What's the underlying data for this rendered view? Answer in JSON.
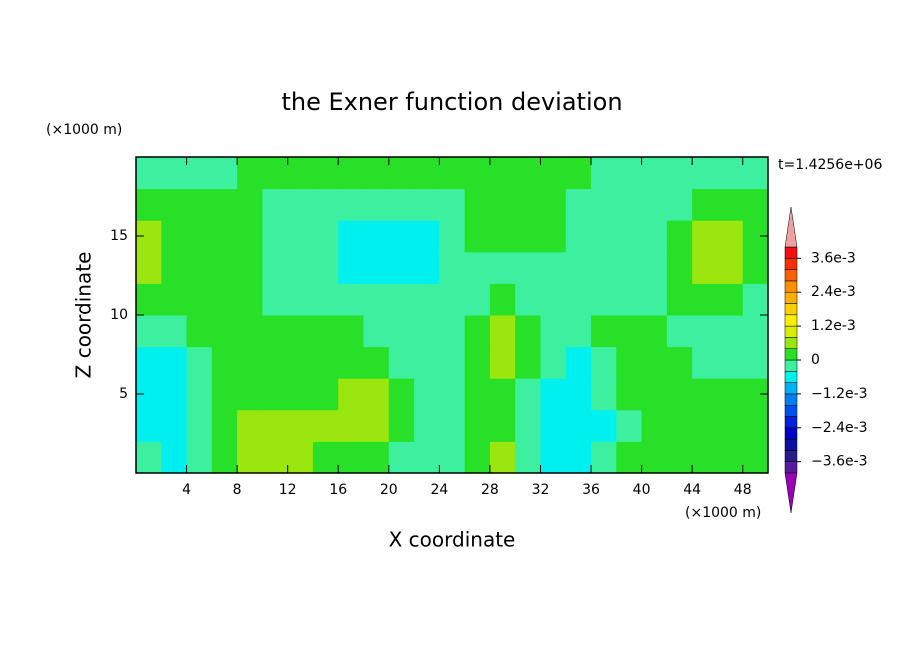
{
  "chart_data": {
    "type": "contour",
    "title": "the Exner function deviation",
    "x_label": "X coordinate",
    "y_label": "Z coordinate",
    "x_unit": "(×1000 m)",
    "y_unit": "(×1000 m)",
    "annotation": "t=1.4256e+06",
    "xlim": [
      0,
      50
    ],
    "ylim": [
      0,
      20
    ],
    "xticks": [
      4,
      8,
      12,
      16,
      20,
      24,
      28,
      32,
      36,
      40,
      44,
      48
    ],
    "yticks": [
      5,
      10,
      15
    ],
    "x": [
      1,
      3,
      5,
      7,
      9,
      11,
      13,
      15,
      17,
      19,
      21,
      23,
      25,
      27,
      29,
      31,
      33,
      35,
      37,
      39,
      41,
      43,
      45,
      47,
      49
    ],
    "y": [
      1,
      3,
      5,
      7,
      9,
      11,
      13,
      15,
      17,
      19
    ],
    "z": [
      [
        -0.0002,
        -0.0006,
        -0.0002,
        0.0002,
        0.0006,
        0.0006,
        0.0006,
        0.0002,
        0.0002,
        0.0002,
        -0.0002,
        -0.0002,
        -0.0002,
        0.0002,
        0.0006,
        -0.0002,
        -0.0006,
        -0.0006,
        -0.0002,
        0.0002,
        0.0002,
        0.0002,
        0.0002,
        0.0002,
        0.0002
      ],
      [
        -0.0006,
        -0.0006,
        -0.0002,
        0.0002,
        0.0006,
        0.0006,
        0.0006,
        0.0006,
        0.0006,
        0.0006,
        0.0002,
        -0.0002,
        -0.0002,
        0.0002,
        0.0002,
        -0.0002,
        -0.0006,
        -0.0006,
        -0.0006,
        -0.0002,
        0.0002,
        0.0002,
        0.0002,
        0.0002,
        0.0002
      ],
      [
        -0.0006,
        -0.0006,
        -0.0002,
        0.0002,
        0.0002,
        0.0002,
        0.0002,
        0.0002,
        0.0006,
        0.0006,
        0.0002,
        -0.0002,
        -0.0002,
        0.0002,
        0.0002,
        -0.0002,
        -0.0006,
        -0.0006,
        -0.0002,
        0.0002,
        0.0002,
        0.0002,
        0.0002,
        0.0002,
        0.0002
      ],
      [
        -0.0006,
        -0.0006,
        -0.0002,
        0.0002,
        0.0002,
        0.0002,
        0.0002,
        0.0002,
        0.0002,
        0.0002,
        -0.0002,
        -0.0002,
        -0.0002,
        0.0002,
        0.0006,
        0.0002,
        -0.0002,
        -0.0006,
        -0.0002,
        0.0002,
        0.0002,
        0.0002,
        -0.0002,
        -0.0002,
        -0.0002
      ],
      [
        -0.0002,
        -0.0002,
        0.0002,
        0.0002,
        0.0002,
        0.0002,
        0.0002,
        0.0002,
        0.0002,
        -0.0002,
        -0.0002,
        -0.0002,
        -0.0002,
        0.0002,
        0.0006,
        0.0002,
        -0.0002,
        -0.0002,
        0.0002,
        0.0002,
        0.0002,
        -0.0002,
        -0.0002,
        -0.0002,
        -0.0002
      ],
      [
        0.0002,
        0.0002,
        0.0002,
        0.0002,
        0.0002,
        -0.0002,
        -0.0002,
        -0.0002,
        -0.0002,
        -0.0002,
        -0.0002,
        -0.0002,
        -0.0002,
        -0.0002,
        0.0002,
        -0.0002,
        -0.0002,
        -0.0002,
        -0.0002,
        -0.0002,
        -0.0002,
        0.0002,
        0.0002,
        0.0002,
        -0.0002
      ],
      [
        0.0006,
        0.0002,
        0.0002,
        0.0002,
        0.0002,
        -0.0002,
        -0.0002,
        -0.0002,
        -0.0006,
        -0.0006,
        -0.0006,
        -0.0006,
        -0.0002,
        -0.0002,
        -0.0002,
        -0.0002,
        -0.0002,
        -0.0002,
        -0.0002,
        -0.0002,
        -0.0002,
        0.0002,
        0.0006,
        0.0006,
        0.0002
      ],
      [
        0.0006,
        0.0002,
        0.0002,
        0.0002,
        0.0002,
        -0.0002,
        -0.0002,
        -0.0002,
        -0.0006,
        -0.0006,
        -0.0006,
        -0.0006,
        -0.0002,
        0.0002,
        0.0002,
        0.0002,
        0.0002,
        -0.0002,
        -0.0002,
        -0.0002,
        -0.0002,
        0.0002,
        0.0006,
        0.0006,
        0.0002
      ],
      [
        0.0002,
        0.0002,
        0.0002,
        0.0002,
        0.0002,
        -0.0002,
        -0.0002,
        -0.0002,
        -0.0002,
        -0.0002,
        -0.0002,
        -0.0002,
        -0.0002,
        0.0002,
        0.0002,
        0.0002,
        0.0002,
        -0.0002,
        -0.0002,
        -0.0002,
        -0.0002,
        -0.0002,
        0.0002,
        0.0002,
        0.0002
      ],
      [
        -0.0002,
        -0.0002,
        -0.0002,
        -0.0002,
        0.0002,
        0.0002,
        0.0002,
        0.0002,
        0.0002,
        0.0002,
        0.0002,
        0.0002,
        0.0002,
        0.0002,
        0.0002,
        0.0002,
        0.0002,
        0.0002,
        -0.0002,
        -0.0002,
        -0.0002,
        -0.0002,
        -0.0002,
        -0.0002,
        -0.0002
      ]
    ],
    "levels": [
      -0.004,
      -0.0036,
      -0.0032,
      -0.0028,
      -0.0024,
      -0.002,
      -0.0016,
      -0.0012,
      -0.0008,
      -0.0004,
      0,
      0.0004,
      0.0008,
      0.0012,
      0.0016,
      0.002,
      0.0024,
      0.0028,
      0.0032,
      0.0036,
      0.004
    ],
    "colors": [
      "#9a00b4",
      "#5a1aa0",
      "#2a1a8a",
      "#1010a0",
      "#0000c8",
      "#0020e0",
      "#0050f0",
      "#0080f0",
      "#00b0f8",
      "#00f0f0",
      "#3cf0a0",
      "#28e028",
      "#9be60f",
      "#d8f000",
      "#f8f000",
      "#f8d000",
      "#f8b000",
      "#f89000",
      "#f86000",
      "#f83000",
      "#f01010",
      "#f0a0a0"
    ],
    "cbticks": [
      {
        "value": 0.0036,
        "label": "3.6e-3"
      },
      {
        "value": 0.0024,
        "label": "2.4e-3"
      },
      {
        "value": 0.0012,
        "label": "1.2e-3"
      },
      0,
      {
        "value": -0.0012,
        "label": "−1.2e-3"
      },
      {
        "value": -0.0024,
        "label": "−2.4e-3"
      },
      {
        "value": -0.0036,
        "label": "−3.6e-3"
      }
    ]
  }
}
